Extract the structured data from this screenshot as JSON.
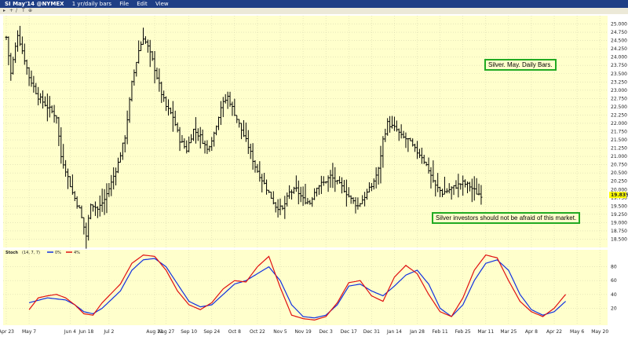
{
  "window": {
    "symbol": "SI May'14 @NYMEX",
    "period": "1 yr/daily bars",
    "menu": [
      "File",
      "Edit",
      "View"
    ]
  },
  "annotations": {
    "title": "Silver. May. Daily Bars.",
    "note": "Silver investors should not be afraid of this market."
  },
  "indicator": {
    "label": "Stoch",
    "params": "(14, 7, 7)",
    "legend": [
      "0%",
      "4%"
    ]
  },
  "colors": {
    "background": "#ffffcc",
    "price_bars": "#000000",
    "k_line": "#e01010",
    "d_line": "#1030e0",
    "annotation_border": "#22aa22",
    "last_price_tag": "#ffff00"
  },
  "chart_data": [
    {
      "type": "bar",
      "style": "ohlc",
      "grid": true,
      "yaxis_position": "right",
      "ylim": [
        18.25,
        25.25
      ],
      "y_ticks": [
        "18.500",
        "18.750",
        "19.000",
        "19.250",
        "19.500",
        "19.750",
        "20.000",
        "20.250",
        "20.500",
        "20.750",
        "21.000",
        "21.250",
        "21.500",
        "21.750",
        "22.000",
        "22.250",
        "22.500",
        "22.750",
        "23.000",
        "23.250",
        "23.500",
        "23.750",
        "24.000",
        "24.250",
        "24.500",
        "24.750",
        "25.000"
      ],
      "last_price": "19.835",
      "x_ticks": [
        "Apr 23",
        "May 7",
        "Jun 4",
        "Jun 18",
        "Jul 2",
        "Aug 13",
        "Aug 27",
        "Sep 10",
        "Sep 24",
        "Oct 8",
        "Oct 22",
        "Nov 5",
        "Nov 19",
        "Dec 3",
        "Dec 17",
        "Dec 31",
        "Jan 14",
        "Jan 28",
        "Feb 11",
        "Feb 25",
        "Mar 11",
        "Mar 25",
        "Apr 8",
        "Apr 22",
        "May 6",
        "May 20"
      ],
      "tick_positions": [
        0,
        10,
        28,
        35,
        45,
        65,
        70,
        80,
        90,
        100,
        110,
        120,
        130,
        140,
        150,
        160,
        170,
        180,
        190,
        200,
        210,
        220,
        230,
        240,
        250,
        260
      ],
      "x_span": 262,
      "anchors": [
        [
          0,
          24.6
        ],
        [
          2,
          23.5
        ],
        [
          5,
          24.7
        ],
        [
          7,
          24.2
        ],
        [
          10,
          23.4
        ],
        [
          14,
          22.8
        ],
        [
          18,
          22.5
        ],
        [
          22,
          22.2
        ],
        [
          24,
          21.0
        ],
        [
          26,
          20.6
        ],
        [
          29,
          19.9
        ],
        [
          32,
          19.4
        ],
        [
          35,
          18.6
        ],
        [
          37,
          19.6
        ],
        [
          40,
          19.4
        ],
        [
          43,
          19.7
        ],
        [
          46,
          20.2
        ],
        [
          49,
          20.8
        ],
        [
          52,
          21.6
        ],
        [
          55,
          23.2
        ],
        [
          58,
          24.2
        ],
        [
          60,
          24.6
        ],
        [
          62,
          24.3
        ],
        [
          64,
          23.9
        ],
        [
          66,
          23.4
        ],
        [
          68,
          22.9
        ],
        [
          70,
          22.5
        ],
        [
          73,
          22.2
        ],
        [
          76,
          21.5
        ],
        [
          79,
          21.2
        ],
        [
          82,
          21.8
        ],
        [
          85,
          21.6
        ],
        [
          88,
          21.2
        ],
        [
          91,
          21.7
        ],
        [
          94,
          22.5
        ],
        [
          97,
          22.8
        ],
        [
          100,
          22.3
        ],
        [
          103,
          21.8
        ],
        [
          106,
          21.3
        ],
        [
          109,
          20.7
        ],
        [
          112,
          20.3
        ],
        [
          115,
          19.9
        ],
        [
          118,
          19.5
        ],
        [
          121,
          19.4
        ],
        [
          124,
          19.9
        ],
        [
          127,
          20.0
        ],
        [
          130,
          19.7
        ],
        [
          133,
          19.6
        ],
        [
          136,
          20.1
        ],
        [
          139,
          20.2
        ],
        [
          142,
          20.4
        ],
        [
          145,
          20.2
        ],
        [
          148,
          20.0
        ],
        [
          151,
          19.7
        ],
        [
          154,
          19.5
        ],
        [
          157,
          19.8
        ],
        [
          160,
          20.1
        ],
        [
          163,
          20.6
        ],
        [
          165,
          21.5
        ],
        [
          167,
          22.0
        ],
        [
          169,
          21.9
        ],
        [
          171,
          21.8
        ],
        [
          173,
          21.6
        ],
        [
          176,
          21.5
        ],
        [
          179,
          21.2
        ],
        [
          182,
          21.0
        ],
        [
          185,
          20.6
        ],
        [
          188,
          20.1
        ],
        [
          191,
          19.9
        ],
        [
          194,
          20.0
        ],
        [
          197,
          20.1
        ],
        [
          200,
          20.2
        ],
        [
          203,
          20.1
        ],
        [
          206,
          19.9
        ],
        [
          208,
          19.84
        ]
      ],
      "n_bars": 209
    },
    {
      "type": "line",
      "title": "Stoch",
      "ylim": [
        0,
        100
      ],
      "y_ticks": [
        "20",
        "40",
        "60",
        "80"
      ],
      "series": [
        {
          "name": "0%",
          "color": "#1030e0",
          "anchors": [
            [
              10,
              28
            ],
            [
              18,
              35
            ],
            [
              26,
              32
            ],
            [
              30,
              25
            ],
            [
              34,
              15
            ],
            [
              38,
              12
            ],
            [
              42,
              20
            ],
            [
              50,
              45
            ],
            [
              55,
              75
            ],
            [
              60,
              90
            ],
            [
              65,
              92
            ],
            [
              70,
              80
            ],
            [
              75,
              55
            ],
            [
              80,
              30
            ],
            [
              85,
              22
            ],
            [
              90,
              25
            ],
            [
              95,
              40
            ],
            [
              100,
              55
            ],
            [
              105,
              60
            ],
            [
              110,
              70
            ],
            [
              115,
              80
            ],
            [
              120,
              60
            ],
            [
              125,
              25
            ],
            [
              130,
              8
            ],
            [
              135,
              6
            ],
            [
              140,
              10
            ],
            [
              145,
              25
            ],
            [
              150,
              52
            ],
            [
              155,
              55
            ],
            [
              160,
              45
            ],
            [
              165,
              38
            ],
            [
              170,
              52
            ],
            [
              175,
              68
            ],
            [
              180,
              75
            ],
            [
              185,
              55
            ],
            [
              190,
              20
            ],
            [
              195,
              8
            ],
            [
              200,
              25
            ],
            [
              205,
              60
            ],
            [
              210,
              85
            ],
            [
              215,
              90
            ],
            [
              220,
              75
            ],
            [
              225,
              40
            ],
            [
              230,
              18
            ],
            [
              235,
              10
            ],
            [
              240,
              15
            ],
            [
              245,
              30
            ]
          ]
        },
        {
          "name": "4%",
          "color": "#e01010",
          "anchors": [
            [
              10,
              18
            ],
            [
              14,
              35
            ],
            [
              18,
              38
            ],
            [
              22,
              40
            ],
            [
              26,
              35
            ],
            [
              30,
              25
            ],
            [
              34,
              12
            ],
            [
              38,
              10
            ],
            [
              42,
              28
            ],
            [
              50,
              55
            ],
            [
              55,
              85
            ],
            [
              60,
              97
            ],
            [
              65,
              95
            ],
            [
              70,
              75
            ],
            [
              75,
              45
            ],
            [
              80,
              25
            ],
            [
              85,
              18
            ],
            [
              90,
              28
            ],
            [
              95,
              48
            ],
            [
              100,
              60
            ],
            [
              105,
              58
            ],
            [
              110,
              80
            ],
            [
              115,
              95
            ],
            [
              120,
              50
            ],
            [
              125,
              10
            ],
            [
              130,
              5
            ],
            [
              135,
              3
            ],
            [
              140,
              8
            ],
            [
              145,
              28
            ],
            [
              150,
              57
            ],
            [
              155,
              60
            ],
            [
              160,
              38
            ],
            [
              165,
              30
            ],
            [
              170,
              65
            ],
            [
              175,
              82
            ],
            [
              180,
              70
            ],
            [
              185,
              40
            ],
            [
              190,
              15
            ],
            [
              195,
              8
            ],
            [
              200,
              35
            ],
            [
              205,
              75
            ],
            [
              210,
              97
            ],
            [
              215,
              93
            ],
            [
              220,
              60
            ],
            [
              225,
              30
            ],
            [
              230,
              15
            ],
            [
              235,
              8
            ],
            [
              240,
              20
            ],
            [
              245,
              40
            ]
          ]
        }
      ]
    }
  ]
}
